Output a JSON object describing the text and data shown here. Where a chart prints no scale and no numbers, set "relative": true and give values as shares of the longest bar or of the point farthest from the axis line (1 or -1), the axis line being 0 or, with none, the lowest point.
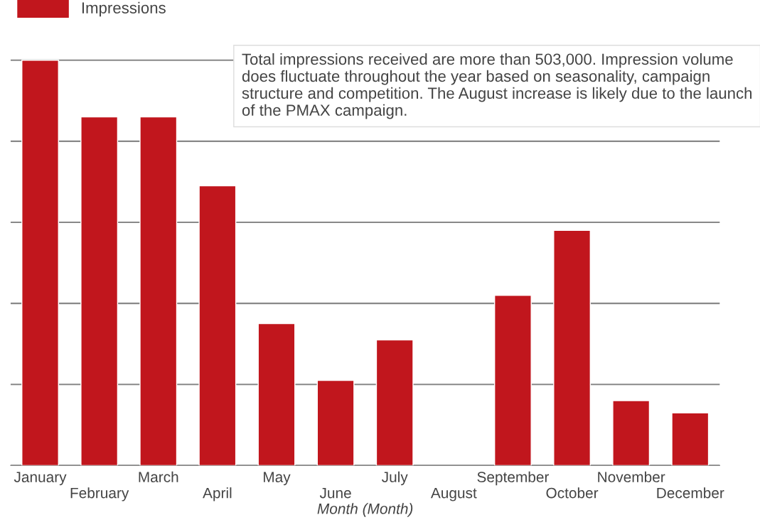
{
  "chart_data": {
    "type": "bar",
    "relative": true,
    "xlabel": "Month (Month)",
    "categories": [
      "January",
      "February",
      "March",
      "April",
      "May",
      "June",
      "July",
      "August",
      "September",
      "October",
      "November",
      "December"
    ],
    "series": [
      {
        "name": "Impressions",
        "color": "#c1161d",
        "values": [
          1.0,
          0.86,
          0.86,
          0.69,
          0.35,
          0.21,
          0.31,
          null,
          0.42,
          0.58,
          0.16,
          0.13
        ]
      }
    ],
    "annotations": [
      "Total impressions received are more than 503,000. Impression volume does fluctuate throughout the year based on seasonality, campaign structure and competition. The August increase is likely due to the launch of the PMAX campaign."
    ],
    "grid": "y",
    "legend": "top left"
  }
}
